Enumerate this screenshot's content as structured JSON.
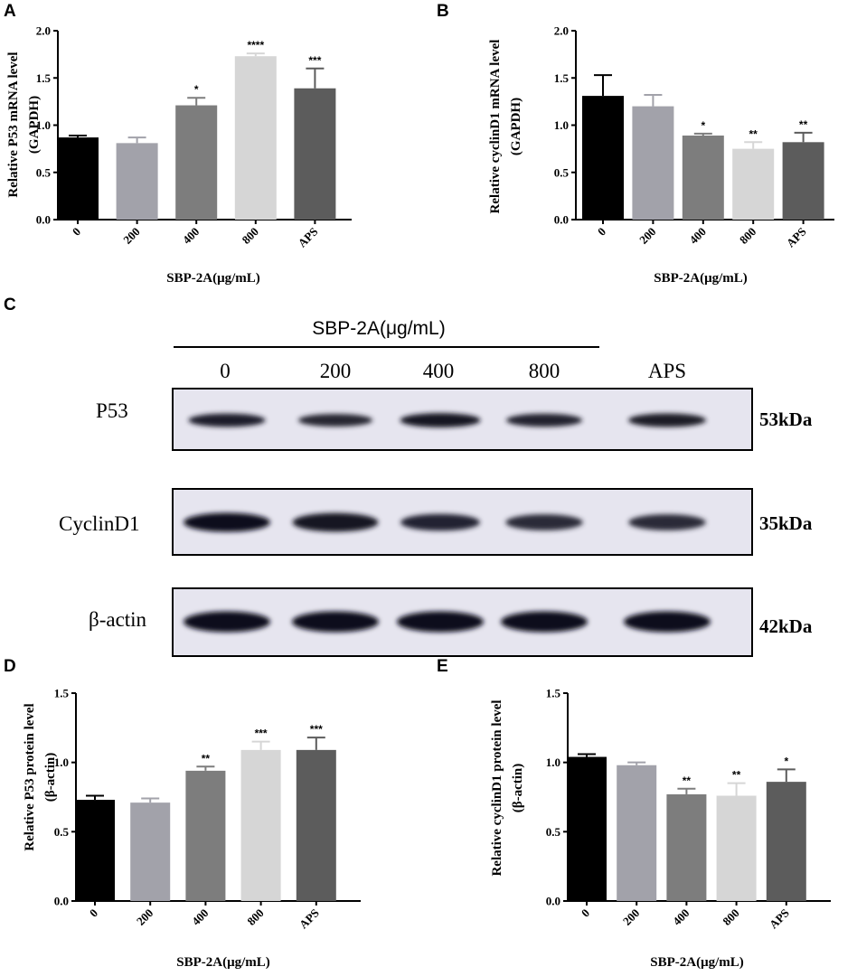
{
  "colors": [
    "#000000",
    "#a2a2aa",
    "#7d7d7d",
    "#d6d6d6",
    "#5c5c5c"
  ],
  "chart_data": [
    {
      "panel": "A",
      "type": "bar",
      "categories": [
        "0",
        "200",
        "400",
        "800",
        "APS"
      ],
      "values": [
        0.87,
        0.81,
        1.21,
        1.73,
        1.39
      ],
      "errors": [
        0.02,
        0.06,
        0.08,
        0.03,
        0.21
      ],
      "significance": [
        "",
        "",
        "*",
        "****",
        "***"
      ],
      "xlabel": "SBP-2A(μg/mL)",
      "ylabel_line1": "Relative P53 mRNA level",
      "ylabel_line2": "(GAPDH)",
      "ylim": [
        0,
        2.0
      ],
      "yticks": [
        "0.0",
        "0.5",
        "1.0",
        "1.5",
        "2.0"
      ]
    },
    {
      "panel": "B",
      "type": "bar",
      "categories": [
        "0",
        "200",
        "400",
        "800",
        "APS"
      ],
      "values": [
        1.31,
        1.2,
        0.89,
        0.75,
        0.82
      ],
      "errors": [
        0.22,
        0.12,
        0.02,
        0.07,
        0.1
      ],
      "significance": [
        "",
        "",
        "*",
        "**",
        "**"
      ],
      "xlabel": "SBP-2A(μg/mL)",
      "ylabel_line1": "Relative cyclinD1 mRNA level",
      "ylabel_line2": "(GAPDH)",
      "ylim": [
        0,
        2.0
      ],
      "yticks": [
        "0.0",
        "0.5",
        "1.0",
        "1.5",
        "2.0"
      ]
    },
    {
      "panel": "D",
      "type": "bar",
      "categories": [
        "0",
        "200",
        "400",
        "800",
        "APS"
      ],
      "values": [
        0.73,
        0.71,
        0.94,
        1.09,
        1.09
      ],
      "errors": [
        0.03,
        0.03,
        0.03,
        0.06,
        0.09
      ],
      "significance": [
        "",
        "",
        "**",
        "***",
        "***"
      ],
      "xlabel": "SBP-2A(μg/mL)",
      "ylabel_line1": "Relative P53 protein level",
      "ylabel_line2": "(β-actin)",
      "ylim": [
        0,
        1.5
      ],
      "yticks": [
        "0.0",
        "0.5",
        "1.0",
        "1.5"
      ]
    },
    {
      "panel": "E",
      "type": "bar",
      "categories": [
        "0",
        "200",
        "400",
        "800",
        "APS"
      ],
      "values": [
        1.04,
        0.98,
        0.77,
        0.76,
        0.86
      ],
      "errors": [
        0.02,
        0.02,
        0.04,
        0.09,
        0.09
      ],
      "significance": [
        "",
        "",
        "**",
        "**",
        "*"
      ],
      "xlabel": "SBP-2A(μg/mL)",
      "ylabel_line1": "Relative cyclinD1 protein level",
      "ylabel_line2": "(β-actin)",
      "ylim": [
        0,
        1.5
      ],
      "yticks": [
        "0.0",
        "0.5",
        "1.0",
        "1.5"
      ]
    }
  ],
  "blot": {
    "panel": "C",
    "header": "SBP-2A(μg/mL)",
    "lanes": [
      "0",
      "200",
      "400",
      "800",
      "APS"
    ],
    "rows": [
      {
        "label": "P53",
        "kda": "53kDa",
        "intensity": [
          0.75,
          0.6,
          0.95,
          0.7,
          0.8
        ]
      },
      {
        "label": "CyclinD1",
        "kda": "35kDa",
        "intensity": [
          1.0,
          0.95,
          0.62,
          0.5,
          0.5
        ]
      },
      {
        "label": "β-actin",
        "kda": "42kDa",
        "intensity": [
          1.0,
          1.0,
          1.0,
          1.0,
          1.0
        ]
      }
    ]
  }
}
